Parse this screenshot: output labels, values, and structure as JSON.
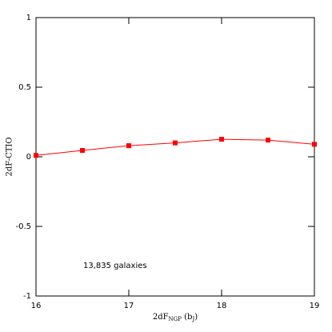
{
  "chart_data": {
    "type": "line",
    "xlabel_parts": [
      {
        "text": "2dF"
      },
      {
        "text": "NGP",
        "sub": true
      },
      {
        "text": " (b"
      },
      {
        "text": "J",
        "sub": true
      },
      {
        "text": ")"
      }
    ],
    "ylabel": "2dF-CTIO",
    "annotation": "13,835 galaxies",
    "x": [
      16,
      16.5,
      17,
      17.5,
      18,
      18.5,
      19
    ],
    "series": [
      {
        "color": "#ff0000",
        "values": [
          0.01,
          0.046,
          0.08,
          0.1,
          0.126,
          0.12,
          0.09
        ]
      }
    ],
    "xlim": [
      16,
      19
    ],
    "ylim": [
      -1,
      1
    ],
    "xticks": [
      16,
      17,
      18,
      19
    ],
    "yticks": [
      -1,
      -0.5,
      0,
      0.5,
      1
    ]
  }
}
